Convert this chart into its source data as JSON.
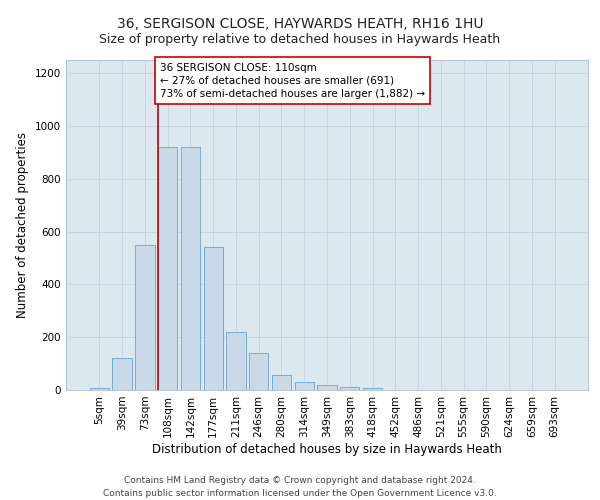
{
  "title_line1": "36, SERGISON CLOSE, HAYWARDS HEATH, RH16 1HU",
  "title_line2": "Size of property relative to detached houses in Haywards Heath",
  "xlabel": "Distribution of detached houses by size in Haywards Heath",
  "ylabel": "Number of detached properties",
  "bar_color": "#c9d9e8",
  "bar_edge_color": "#6aa3cc",
  "categories": [
    "5sqm",
    "39sqm",
    "73sqm",
    "108sqm",
    "142sqm",
    "177sqm",
    "211sqm",
    "246sqm",
    "280sqm",
    "314sqm",
    "349sqm",
    "383sqm",
    "418sqm",
    "452sqm",
    "486sqm",
    "521sqm",
    "555sqm",
    "590sqm",
    "624sqm",
    "659sqm",
    "693sqm"
  ],
  "values": [
    8,
    120,
    550,
    920,
    920,
    540,
    220,
    140,
    55,
    32,
    18,
    12,
    8,
    0,
    0,
    0,
    0,
    0,
    0,
    0,
    0
  ],
  "ylim": [
    0,
    1250
  ],
  "yticks": [
    0,
    200,
    400,
    600,
    800,
    1000,
    1200
  ],
  "property_line_bin": 3,
  "annotation_text": "36 SERGISON CLOSE: 110sqm\n← 27% of detached houses are smaller (691)\n73% of semi-detached houses are larger (1,882) →",
  "annotation_box_color": "#ffffff",
  "annotation_box_edgecolor": "#cc0000",
  "red_line_color": "#cc0000",
  "grid_color": "#c8d4e0",
  "background_color": "#dce8f0",
  "fig_background": "#ffffff",
  "footer_line1": "Contains HM Land Registry data © Crown copyright and database right 2024.",
  "footer_line2": "Contains public sector information licensed under the Open Government Licence v3.0.",
  "title_fontsize": 10,
  "subtitle_fontsize": 9,
  "axis_label_fontsize": 8.5,
  "tick_fontsize": 7.5,
  "annotation_fontsize": 7.5,
  "footer_fontsize": 6.5
}
